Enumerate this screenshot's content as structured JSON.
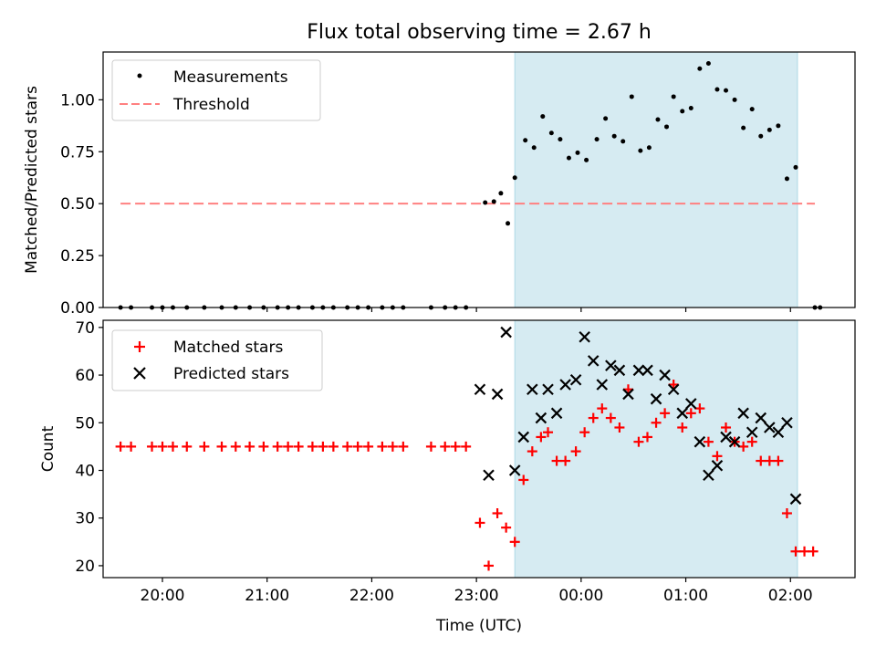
{
  "title": "Flux total observing time = 2.67 h",
  "colors": {
    "shade": "#add8e6",
    "matched": "#ff0000",
    "predicted": "#000000",
    "measurement": "#000000",
    "threshold": "#ff8080"
  },
  "chart_data": [
    {
      "type": "scatter",
      "ylabel": "Matched/Predicted stars",
      "ylim": [
        0,
        1.23
      ],
      "yticks": [
        0.0,
        0.25,
        0.5,
        0.75,
        1.0
      ],
      "ytick_labels": [
        "0.00",
        "0.25",
        "0.50",
        "0.75",
        "1.00"
      ],
      "xlim": [
        "19:26",
        "02:37"
      ],
      "shaded_interval": [
        "23:22",
        "02:04"
      ],
      "threshold": {
        "name": "Threshold",
        "value": 0.5,
        "x": [
          "19:36",
          "02:14"
        ]
      },
      "legend": [
        "Measurements",
        "Threshold"
      ],
      "legend_location": "upper-left",
      "series": [
        {
          "name": "Measurements",
          "points": [
            [
              "19:36",
              0
            ],
            [
              "19:42",
              0
            ],
            [
              "19:54",
              0
            ],
            [
              "20:00",
              0
            ],
            [
              "20:06",
              0
            ],
            [
              "20:14",
              0
            ],
            [
              "20:24",
              0
            ],
            [
              "20:34",
              0
            ],
            [
              "20:42",
              0
            ],
            [
              "20:50",
              0
            ],
            [
              "20:58",
              0
            ],
            [
              "21:06",
              0
            ],
            [
              "21:12",
              0
            ],
            [
              "21:18",
              0
            ],
            [
              "21:26",
              0
            ],
            [
              "21:32",
              0
            ],
            [
              "21:38",
              0
            ],
            [
              "21:46",
              0
            ],
            [
              "21:52",
              0
            ],
            [
              "21:58",
              0
            ],
            [
              "22:06",
              0
            ],
            [
              "22:12",
              0
            ],
            [
              "22:18",
              0
            ],
            [
              "22:34",
              0
            ],
            [
              "22:42",
              0
            ],
            [
              "22:48",
              0
            ],
            [
              "22:54",
              0
            ],
            [
              "23:05",
              0.505
            ],
            [
              "23:10",
              0.51
            ],
            [
              "23:14",
              0.55
            ],
            [
              "23:18",
              0.405
            ],
            [
              "23:22",
              0.625
            ],
            [
              "23:28",
              0.805
            ],
            [
              "23:33",
              0.77
            ],
            [
              "23:38",
              0.92
            ],
            [
              "23:43",
              0.84
            ],
            [
              "23:48",
              0.81
            ],
            [
              "23:53",
              0.72
            ],
            [
              "23:58",
              0.745
            ],
            [
              "00:03",
              0.71
            ],
            [
              "00:09",
              0.81
            ],
            [
              "00:14",
              0.91
            ],
            [
              "00:19",
              0.825
            ],
            [
              "00:24",
              0.8
            ],
            [
              "00:29",
              1.015
            ],
            [
              "00:34",
              0.755
            ],
            [
              "00:39",
              0.77
            ],
            [
              "00:44",
              0.905
            ],
            [
              "00:49",
              0.87
            ],
            [
              "00:53",
              1.015
            ],
            [
              "00:58",
              0.945
            ],
            [
              "01:03",
              0.96
            ],
            [
              "01:08",
              1.15
            ],
            [
              "01:13",
              1.175
            ],
            [
              "01:18",
              1.05
            ],
            [
              "01:23",
              1.045
            ],
            [
              "01:28",
              1.0
            ],
            [
              "01:33",
              0.865
            ],
            [
              "01:38",
              0.955
            ],
            [
              "01:43",
              0.825
            ],
            [
              "01:48",
              0.855
            ],
            [
              "01:53",
              0.875
            ],
            [
              "01:58",
              0.62
            ],
            [
              "02:03",
              0.675
            ],
            [
              "02:14",
              0
            ],
            [
              "02:17",
              0
            ]
          ]
        }
      ]
    },
    {
      "type": "scatter",
      "ylabel": "Count",
      "xlabel": "Time (UTC)",
      "ylim": [
        17.5,
        71.5
      ],
      "yticks": [
        20,
        30,
        40,
        50,
        60,
        70
      ],
      "ytick_labels": [
        "20",
        "30",
        "40",
        "50",
        "60",
        "70"
      ],
      "xlim": [
        "19:26",
        "02:37"
      ],
      "xticks": [
        "20:00",
        "21:00",
        "22:00",
        "23:00",
        "00:00",
        "01:00",
        "02:00"
      ],
      "shaded_interval": [
        "23:22",
        "02:04"
      ],
      "legend": [
        "Matched stars",
        "Predicted stars"
      ],
      "legend_location": "upper-left",
      "series": [
        {
          "name": "Matched stars",
          "points": [
            [
              "19:36",
              45
            ],
            [
              "19:42",
              45
            ],
            [
              "19:54",
              45
            ],
            [
              "20:00",
              45
            ],
            [
              "20:06",
              45
            ],
            [
              "20:14",
              45
            ],
            [
              "20:24",
              45
            ],
            [
              "20:34",
              45
            ],
            [
              "20:42",
              45
            ],
            [
              "20:50",
              45
            ],
            [
              "20:58",
              45
            ],
            [
              "21:06",
              45
            ],
            [
              "21:12",
              45
            ],
            [
              "21:18",
              45
            ],
            [
              "21:26",
              45
            ],
            [
              "21:32",
              45
            ],
            [
              "21:38",
              45
            ],
            [
              "21:46",
              45
            ],
            [
              "21:52",
              45
            ],
            [
              "21:58",
              45
            ],
            [
              "22:06",
              45
            ],
            [
              "22:12",
              45
            ],
            [
              "22:18",
              45
            ],
            [
              "22:34",
              45
            ],
            [
              "22:42",
              45
            ],
            [
              "22:48",
              45
            ],
            [
              "22:54",
              45
            ],
            [
              "23:02",
              29
            ],
            [
              "23:07",
              20
            ],
            [
              "23:12",
              31
            ],
            [
              "23:17",
              28
            ],
            [
              "23:22",
              25
            ],
            [
              "23:27",
              38
            ],
            [
              "23:32",
              44
            ],
            [
              "23:37",
              47
            ],
            [
              "23:41",
              48
            ],
            [
              "23:46",
              42
            ],
            [
              "23:51",
              42
            ],
            [
              "23:57",
              44
            ],
            [
              "00:02",
              48
            ],
            [
              "00:07",
              51
            ],
            [
              "00:12",
              53
            ],
            [
              "00:17",
              51
            ],
            [
              "00:22",
              49
            ],
            [
              "00:27",
              57
            ],
            [
              "00:33",
              46
            ],
            [
              "00:38",
              47
            ],
            [
              "00:43",
              50
            ],
            [
              "00:48",
              52
            ],
            [
              "00:53",
              58
            ],
            [
              "00:58",
              49
            ],
            [
              "01:03",
              52
            ],
            [
              "01:08",
              53
            ],
            [
              "01:13",
              46
            ],
            [
              "01:18",
              43
            ],
            [
              "01:23",
              49
            ],
            [
              "01:28",
              46
            ],
            [
              "01:33",
              45
            ],
            [
              "01:38",
              46
            ],
            [
              "01:43",
              42
            ],
            [
              "01:48",
              42
            ],
            [
              "01:53",
              42
            ],
            [
              "01:58",
              31
            ],
            [
              "02:03",
              23
            ],
            [
              "02:08",
              23
            ],
            [
              "02:13",
              23
            ]
          ]
        },
        {
          "name": "Predicted stars",
          "points": [
            [
              "23:02",
              57
            ],
            [
              "23:07",
              39
            ],
            [
              "23:12",
              56
            ],
            [
              "23:17",
              69
            ],
            [
              "23:22",
              40
            ],
            [
              "23:27",
              47
            ],
            [
              "23:32",
              57
            ],
            [
              "23:37",
              51
            ],
            [
              "23:41",
              57
            ],
            [
              "23:46",
              52
            ],
            [
              "23:51",
              58
            ],
            [
              "23:57",
              59
            ],
            [
              "00:02",
              68
            ],
            [
              "00:07",
              63
            ],
            [
              "00:12",
              58
            ],
            [
              "00:17",
              62
            ],
            [
              "00:22",
              61
            ],
            [
              "00:27",
              56
            ],
            [
              "00:33",
              61
            ],
            [
              "00:38",
              61
            ],
            [
              "00:43",
              55
            ],
            [
              "00:48",
              60
            ],
            [
              "00:53",
              57
            ],
            [
              "00:58",
              52
            ],
            [
              "01:03",
              54
            ],
            [
              "01:08",
              46
            ],
            [
              "01:13",
              39
            ],
            [
              "01:18",
              41
            ],
            [
              "01:23",
              47
            ],
            [
              "01:28",
              46
            ],
            [
              "01:33",
              52
            ],
            [
              "01:38",
              48
            ],
            [
              "01:43",
              51
            ],
            [
              "01:48",
              49
            ],
            [
              "01:53",
              48
            ],
            [
              "01:58",
              50
            ],
            [
              "02:03",
              34
            ]
          ]
        }
      ]
    }
  ]
}
